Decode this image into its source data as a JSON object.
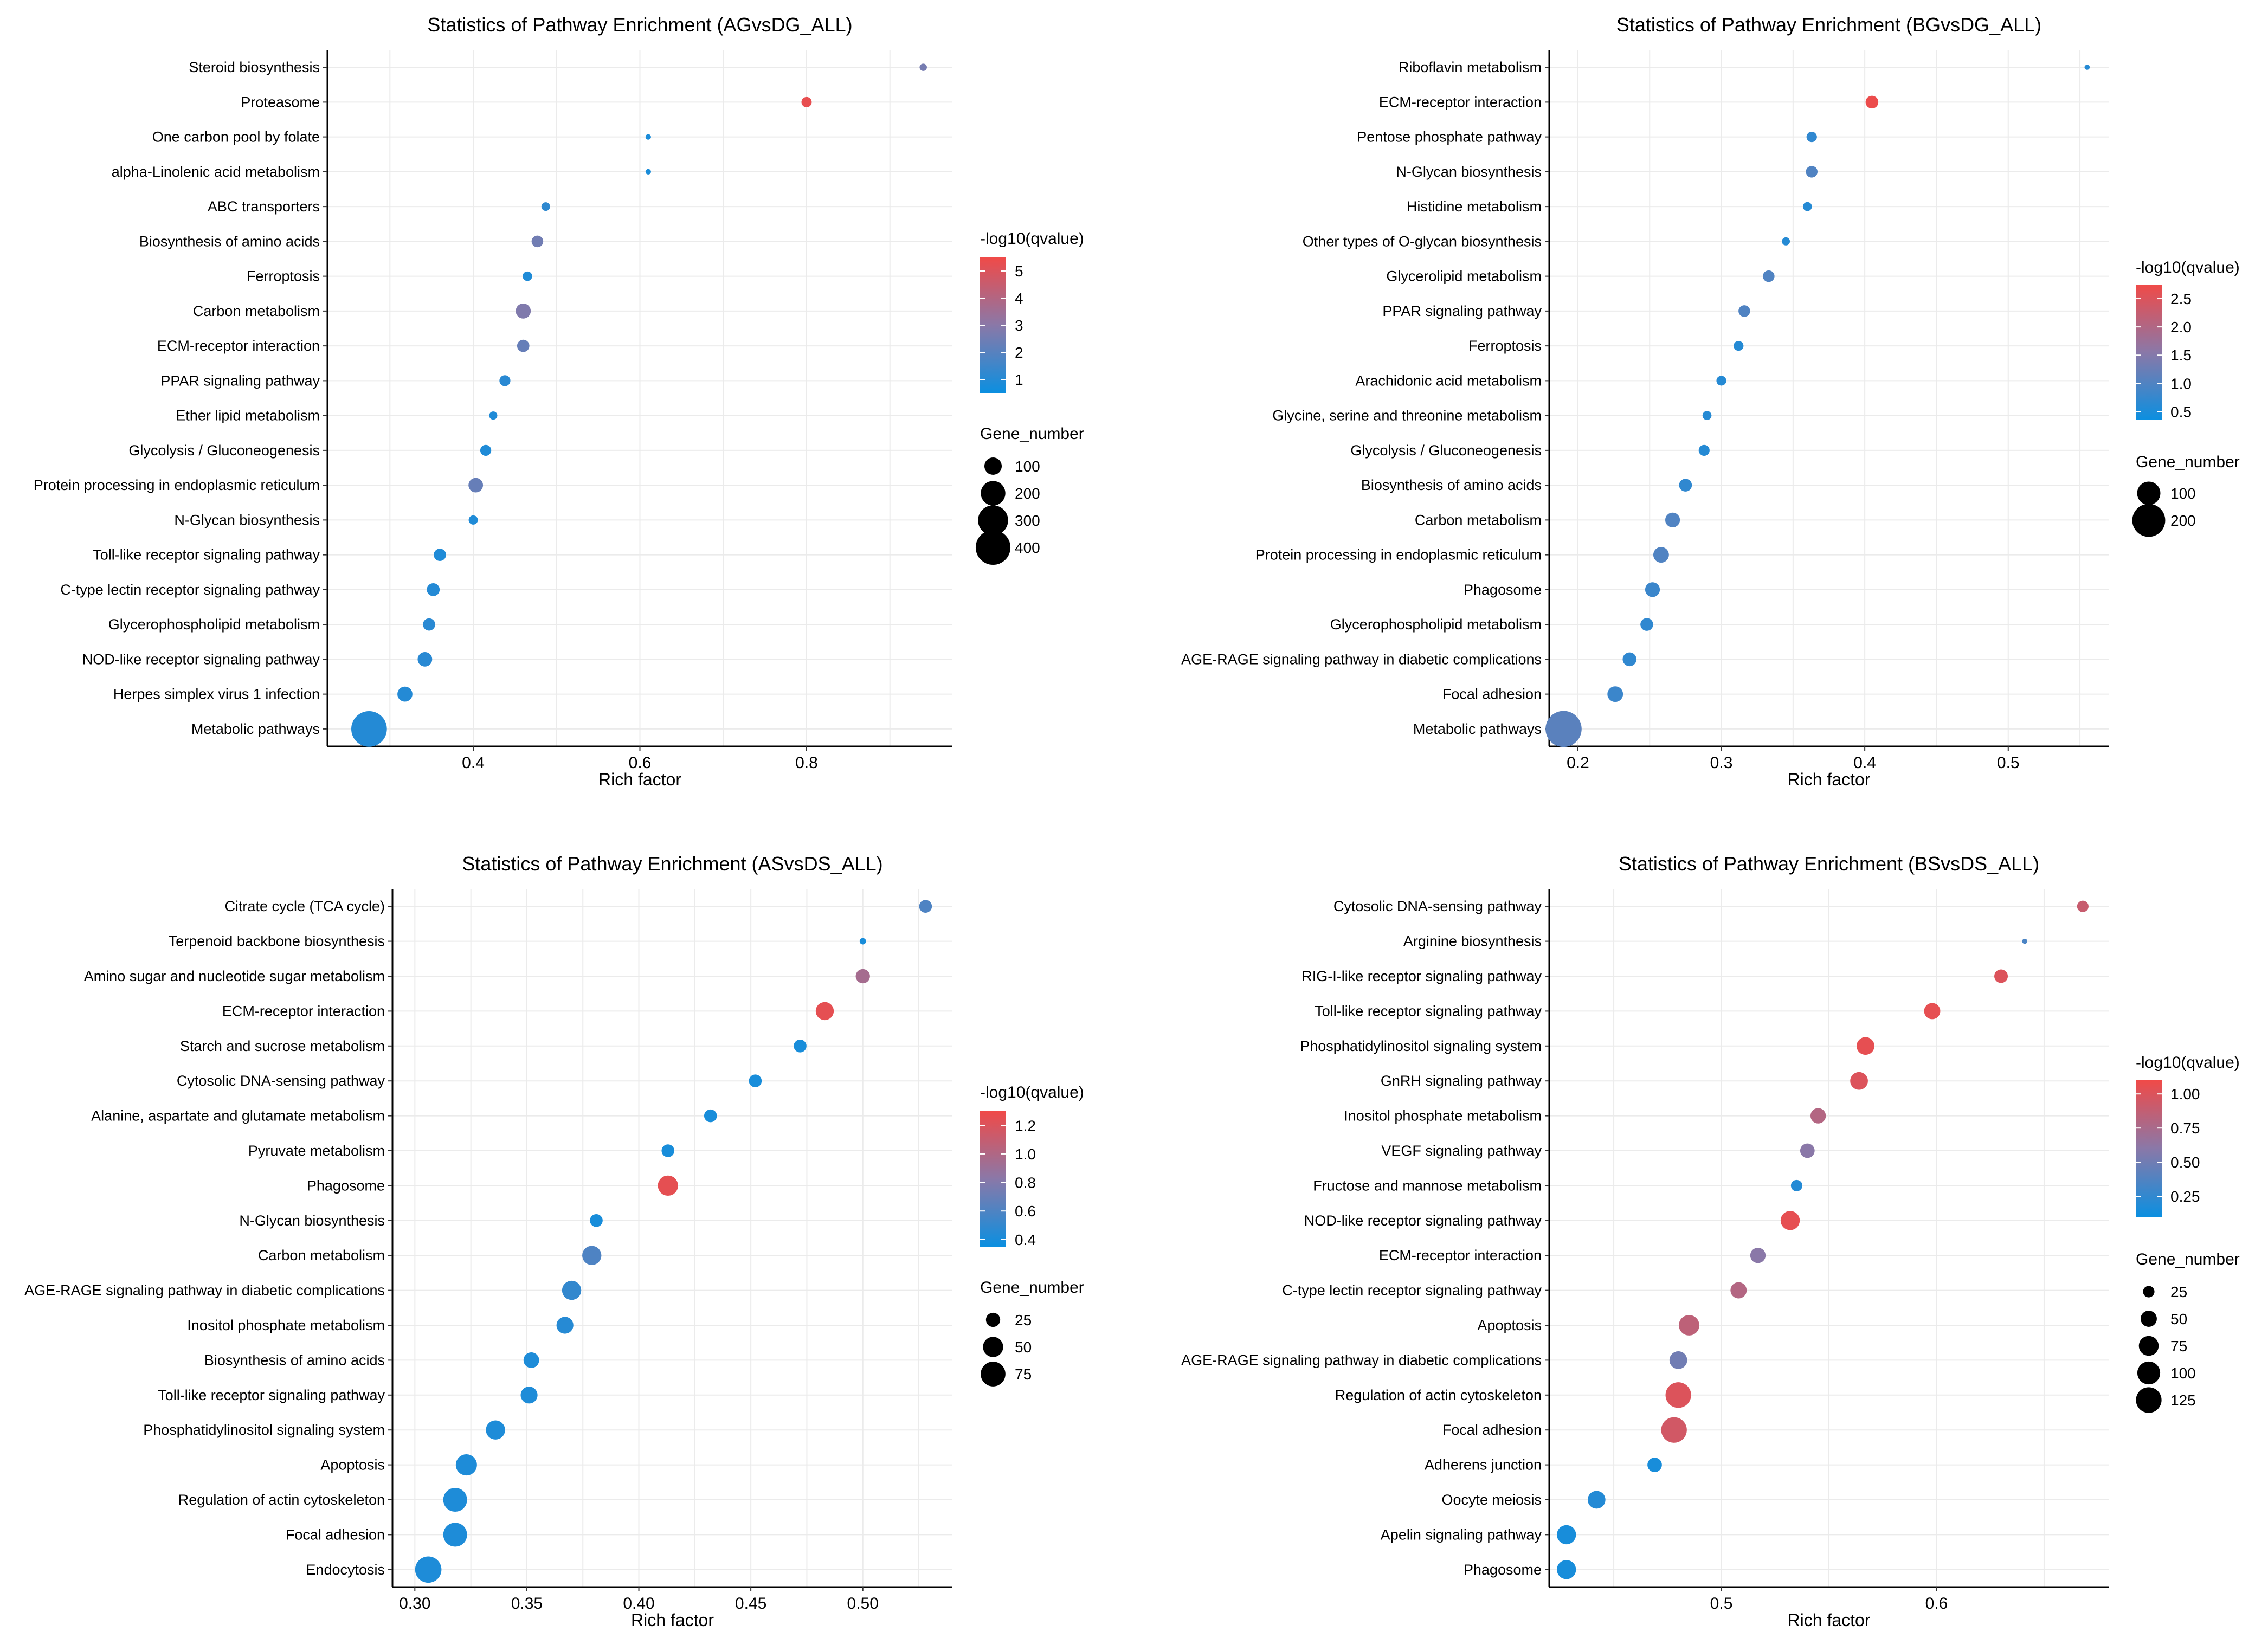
{
  "legend_labels": {
    "color_title": "-log10(qvalue)",
    "size_title": "Gene_number",
    "x_axis": "Rich factor"
  },
  "colors": {
    "low": "#0b8fe0",
    "mid": "#8a78a8",
    "high": "#f04a48",
    "grid": "#ebebeb",
    "axis": "#000000"
  },
  "chart_data": [
    {
      "type": "scatter",
      "title": "Statistics of Pathway Enrichment (AGvsDG_ALL)",
      "xlabel": "Rich factor",
      "xlim": [
        0.225,
        0.975
      ],
      "xticks": [
        0.4,
        0.6,
        0.8
      ],
      "xtick_labels": [
        "0.4",
        "0.6",
        "0.8"
      ],
      "color_range": [
        0.5,
        5.5
      ],
      "color_ticks": [
        1,
        2,
        3,
        4,
        5
      ],
      "color_tick_labels": [
        "1",
        "2",
        "3",
        "4",
        "5"
      ],
      "size_range": [
        0,
        450
      ],
      "size_legend": [
        100,
        200,
        300,
        400
      ],
      "size_legend_labels": [
        "100",
        "200",
        "300",
        "400"
      ],
      "categories": [
        "Steroid biosynthesis",
        "Proteasome",
        "One carbon pool by folate",
        "alpha-Linolenic acid metabolism",
        "ABC transporters",
        "Biosynthesis of amino acids",
        "Ferroptosis",
        "Carbon metabolism",
        "ECM-receptor interaction",
        "PPAR signaling pathway",
        "Ether lipid metabolism",
        "Glycolysis / Gluconeogenesis",
        "Protein processing in endoplasmic reticulum",
        "N-Glycan biosynthesis",
        "Toll-like receptor signaling pathway",
        "C-type lectin receptor signaling pathway",
        "Glycerophospholipid metabolism",
        "NOD-like receptor signaling pathway",
        "Herpes simplex virus 1 infection",
        "Metabolic pathways"
      ],
      "x": [
        0.94,
        0.8,
        0.61,
        0.61,
        0.487,
        0.477,
        0.465,
        0.46,
        0.46,
        0.438,
        0.424,
        0.415,
        0.403,
        0.4,
        0.36,
        0.352,
        0.347,
        0.342,
        0.318,
        0.275
      ],
      "qvalue": [
        2.6,
        5.3,
        0.8,
        0.8,
        1.2,
        2.5,
        0.9,
        2.8,
        2.3,
        1.1,
        0.9,
        0.9,
        2.3,
        0.9,
        0.9,
        1.0,
        1.1,
        1.1,
        1.0,
        1.0
      ],
      "gene_number": [
        18,
        35,
        10,
        10,
        25,
        45,
        30,
        75,
        50,
        40,
        22,
        40,
        70,
        28,
        50,
        55,
        50,
        70,
        75,
        420
      ]
    },
    {
      "type": "scatter",
      "title": "Statistics of Pathway Enrichment (BGvsDG_ALL)",
      "xlabel": "Rich factor",
      "xlim": [
        0.18,
        0.57
      ],
      "xticks": [
        0.2,
        0.3,
        0.4,
        0.5
      ],
      "xtick_labels": [
        "0.2",
        "0.3",
        "0.4",
        "0.5"
      ],
      "color_range": [
        0.35,
        2.75
      ],
      "color_ticks": [
        0.5,
        1.0,
        1.5,
        2.0,
        2.5
      ],
      "color_tick_labels": [
        "0.5",
        "1.0",
        "1.5",
        "2.0",
        "2.5"
      ],
      "size_range": [
        0,
        250
      ],
      "size_legend": [
        100,
        200
      ],
      "size_legend_labels": [
        "100",
        "200"
      ],
      "categories": [
        "Riboflavin metabolism",
        "ECM-receptor interaction",
        "Pentose phosphate pathway",
        "N-Glycan biosynthesis",
        "Histidine metabolism",
        "Other types of O-glycan biosynthesis",
        "Glycerolipid metabolism",
        "PPAR signaling pathway",
        "Ferroptosis",
        "Arachidonic acid metabolism",
        "Glycine, serine and threonine metabolism",
        "Glycolysis / Gluconeogenesis",
        "Biosynthesis of amino acids",
        "Carbon metabolism",
        "Protein processing in endoplasmic reticulum",
        "Phagosome",
        "Glycerophospholipid metabolism",
        "AGE-RAGE signaling pathway in diabetic complications",
        "Focal adhesion",
        "Metabolic pathways"
      ],
      "x": [
        0.555,
        0.405,
        0.363,
        0.363,
        0.36,
        0.345,
        0.333,
        0.316,
        0.312,
        0.3,
        0.29,
        0.288,
        0.275,
        0.266,
        0.258,
        0.252,
        0.248,
        0.236,
        0.226,
        0.19
      ],
      "qvalue": [
        0.6,
        2.7,
        0.7,
        1.0,
        0.6,
        0.6,
        1.0,
        1.0,
        0.6,
        0.6,
        0.6,
        0.6,
        0.7,
        1.0,
        1.0,
        0.8,
        0.7,
        0.7,
        0.8,
        1.1
      ],
      "gene_number": [
        5,
        30,
        20,
        25,
        15,
        12,
        25,
        25,
        18,
        18,
        15,
        22,
        30,
        40,
        45,
        40,
        30,
        35,
        45,
        240
      ]
    },
    {
      "type": "scatter",
      "title": "Statistics of Pathway Enrichment (ASvsDS_ALL)",
      "xlabel": "Rich factor",
      "xlim": [
        0.29,
        0.54
      ],
      "xticks": [
        0.3,
        0.35,
        0.4,
        0.45,
        0.5
      ],
      "xtick_labels": [
        "0.30",
        "0.35",
        "0.40",
        "0.45",
        "0.50"
      ],
      "color_range": [
        0.35,
        1.3
      ],
      "color_ticks": [
        0.4,
        0.6,
        0.8,
        1.0,
        1.2
      ],
      "color_tick_labels": [
        "0.4",
        "0.6",
        "0.8",
        "1.0",
        "1.2"
      ],
      "size_range": [
        0,
        90
      ],
      "size_legend": [
        25,
        50,
        75
      ],
      "size_legend_labels": [
        "25",
        "50",
        "75"
      ],
      "categories": [
        "Citrate cycle (TCA cycle)",
        "Terpenoid backbone biosynthesis",
        "Amino sugar and nucleotide sugar metabolism",
        "ECM-receptor interaction",
        "Starch and sucrose metabolism",
        "Cytosolic DNA-sensing pathway",
        "Alanine, aspartate and glutamate metabolism",
        "Pyruvate metabolism",
        "Phagosome",
        "N-Glycan biosynthesis",
        "Carbon metabolism",
        "AGE-RAGE signaling pathway in diabetic complications",
        "Inositol phosphate metabolism",
        "Biosynthesis of amino acids",
        "Toll-like receptor signaling pathway",
        "Phosphatidylinositol signaling system",
        "Apoptosis",
        "Regulation of actin cytoskeleton",
        "Focal adhesion",
        "Endocytosis"
      ],
      "x": [
        0.528,
        0.5,
        0.5,
        0.483,
        0.472,
        0.452,
        0.432,
        0.413,
        0.413,
        0.381,
        0.379,
        0.37,
        0.367,
        0.352,
        0.351,
        0.336,
        0.323,
        0.318,
        0.318,
        0.306
      ],
      "qvalue": [
        0.6,
        0.4,
        0.95,
        1.25,
        0.4,
        0.4,
        0.4,
        0.4,
        1.25,
        0.4,
        0.6,
        0.5,
        0.45,
        0.42,
        0.42,
        0.42,
        0.42,
        0.42,
        0.42,
        0.42
      ],
      "gene_number": [
        20,
        5,
        25,
        40,
        20,
        20,
        20,
        20,
        50,
        20,
        45,
        45,
        35,
        30,
        35,
        45,
        55,
        70,
        70,
        85
      ]
    },
    {
      "type": "scatter",
      "title": "Statistics of Pathway Enrichment (BSvsDS_ALL)",
      "xlabel": "Rich factor",
      "xlim": [
        0.42,
        0.68
      ],
      "xticks": [
        0.5,
        0.6
      ],
      "xtick_labels": [
        "0.5",
        "0.6"
      ],
      "color_range": [
        0.1,
        1.1
      ],
      "color_ticks": [
        0.25,
        0.5,
        0.75,
        1.0
      ],
      "color_tick_labels": [
        "0.25",
        "0.50",
        "0.75",
        "1.00"
      ],
      "size_range": [
        0,
        140
      ],
      "size_legend": [
        25,
        50,
        75,
        100,
        125
      ],
      "size_legend_labels": [
        "25",
        "50",
        "75",
        "100",
        "125"
      ],
      "categories": [
        "Cytosolic DNA-sensing pathway",
        "Arginine biosynthesis",
        "RIG-I-like receptor signaling pathway",
        "Toll-like receptor signaling pathway",
        "Phosphatidylinositol signaling system",
        "GnRH signaling pathway",
        "Inositol phosphate metabolism",
        "VEGF signaling pathway",
        "Fructose and mannose metabolism",
        "NOD-like receptor signaling pathway",
        "ECM-receptor interaction",
        "C-type lectin receptor signaling pathway",
        "Apoptosis",
        "AGE-RAGE signaling pathway in diabetic complications",
        "Regulation of actin cytoskeleton",
        "Focal adhesion",
        "Adherens junction",
        "Oocyte meiosis",
        "Apelin signaling pathway",
        "Phagosome"
      ],
      "x": [
        0.668,
        0.641,
        0.63,
        0.598,
        0.567,
        0.564,
        0.545,
        0.54,
        0.535,
        0.532,
        0.517,
        0.508,
        0.485,
        0.48,
        0.48,
        0.478,
        0.469,
        0.442,
        0.428,
        0.428
      ],
      "qvalue": [
        0.9,
        0.35,
        1.0,
        1.05,
        1.05,
        1.0,
        0.8,
        0.6,
        0.2,
        1.05,
        0.6,
        0.8,
        0.85,
        0.5,
        1.0,
        0.95,
        0.15,
        0.2,
        0.15,
        0.15
      ],
      "gene_number": [
        25,
        5,
        35,
        50,
        60,
        60,
        45,
        40,
        25,
        70,
        45,
        50,
        80,
        60,
        125,
        125,
        40,
        60,
        70,
        70
      ]
    }
  ]
}
